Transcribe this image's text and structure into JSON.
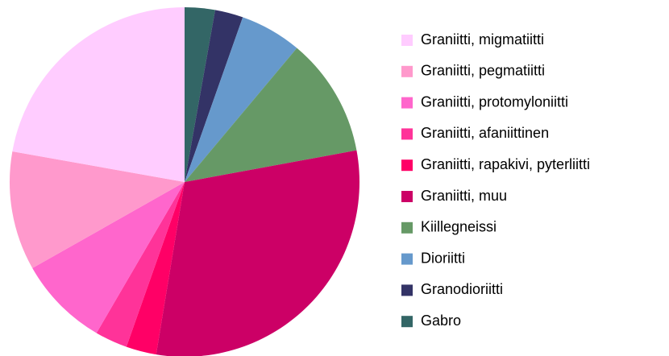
{
  "chart_data": {
    "type": "pie",
    "categories": [
      "Graniitti, migmatiitti",
      "Graniitti, pegmatiitti",
      "Graniitti, protomyloniitti",
      "Graniitti, afaniittinen",
      "Graniitti, rapakivi, pyterliitti",
      "Graniitti, muu",
      "Kiillegneissi",
      "Dioriitti",
      "Granodioriitti",
      "Gabro"
    ],
    "values": [
      22.2,
      11,
      8.4,
      3,
      2.8,
      30.5,
      11,
      5.7,
      2.6,
      2.8
    ],
    "colors": [
      "#ffccff",
      "#ff99cc",
      "#ff66cc",
      "#ff3399",
      "#ff0066",
      "#cc0066",
      "#669966",
      "#6699cc",
      "#333366",
      "#336666"
    ],
    "legend": "right"
  }
}
